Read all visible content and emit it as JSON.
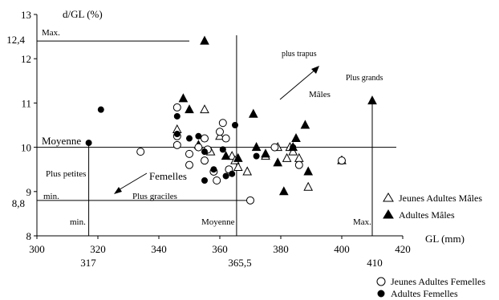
{
  "chart_data": {
    "type": "scatter",
    "title": "",
    "xlabel": "GL (mm)",
    "ylabel": "d/GL (%)",
    "xlim": [
      300,
      420
    ],
    "ylim": [
      8,
      13
    ],
    "x_ticks": [
      "300",
      "320",
      "340",
      "360",
      "380",
      "400",
      "420"
    ],
    "y_ticks": [
      "8",
      "9",
      "10",
      "11",
      "12",
      "13"
    ],
    "grid": false,
    "reference_lines": {
      "x_mean": 365.5,
      "y_mean": 10,
      "x_min": 317,
      "x_max": 410,
      "y_min": 8.8,
      "y_max": 12.4
    },
    "extra_labels": {
      "x_min_value": "317",
      "x_mean_value": "365,5",
      "x_max_value": "410",
      "y_min_value": "8,8",
      "y_max_value": "12,4"
    },
    "annotations": {
      "max_top": "Max.",
      "moyenne_left": "Moyenne",
      "min_left": "min.",
      "min_bottom": "min.",
      "moyenne_bottom": "Moyenne",
      "max_bottom": "Max.",
      "plus_trapus": "plus trapus",
      "males": "Mâles",
      "plus_grands": "Plus grands",
      "plus_petites": "Plus petites",
      "femelles": "Femelles",
      "plus_graciles": "Plus graciles"
    },
    "legend_placement": "bottom-right",
    "series": [
      {
        "name": "Jeunes Adultes Mâles",
        "marker": "triangle-open",
        "points": [
          [
            346,
            10.4
          ],
          [
            355,
            10.85
          ],
          [
            357,
            9.9
          ],
          [
            360,
            10.25
          ],
          [
            364,
            9.8
          ],
          [
            365,
            9.7
          ],
          [
            366,
            9.55
          ],
          [
            369,
            9.45
          ],
          [
            375,
            9.8
          ],
          [
            379,
            10.0
          ],
          [
            382,
            9.75
          ],
          [
            383,
            10.0
          ],
          [
            384,
            9.9
          ],
          [
            386,
            9.75
          ],
          [
            389,
            9.1
          ],
          [
            400,
            9.7
          ]
        ]
      },
      {
        "name": "Adultes Mâles",
        "marker": "triangle-filled",
        "points": [
          [
            355,
            12.4
          ],
          [
            348,
            11.1
          ],
          [
            350,
            10.85
          ],
          [
            353,
            10.05
          ],
          [
            362,
            9.8
          ],
          [
            366,
            9.75
          ],
          [
            371,
            10.75
          ],
          [
            372,
            10.0
          ],
          [
            375,
            9.85
          ],
          [
            379,
            9.65
          ],
          [
            381,
            9.0
          ],
          [
            384,
            10.0
          ],
          [
            385,
            10.2
          ],
          [
            388,
            10.5
          ],
          [
            389,
            9.45
          ],
          [
            410,
            11.05
          ]
        ]
      },
      {
        "name": "Jeunes Adultes Femelles",
        "marker": "circle-open",
        "points": [
          [
            334,
            9.9
          ],
          [
            346,
            10.9
          ],
          [
            346,
            10.05
          ],
          [
            346,
            10.25
          ],
          [
            350,
            9.6
          ],
          [
            350,
            9.85
          ],
          [
            353,
            10.0
          ],
          [
            355,
            9.7
          ],
          [
            355,
            10.2
          ],
          [
            356,
            9.95
          ],
          [
            358,
            9.45
          ],
          [
            359,
            9.25
          ],
          [
            360,
            10.35
          ],
          [
            361,
            10.55
          ],
          [
            362,
            10.2
          ],
          [
            363,
            9.5
          ],
          [
            370,
            8.8
          ],
          [
            378,
            10.0
          ],
          [
            386,
            9.6
          ],
          [
            400,
            9.7
          ]
        ]
      },
      {
        "name": "Adultes Femelles",
        "marker": "circle-filled",
        "points": [
          [
            321,
            10.85
          ],
          [
            317,
            10.1
          ],
          [
            346,
            10.3
          ],
          [
            346,
            10.7
          ],
          [
            350,
            10.2
          ],
          [
            353,
            10.25
          ],
          [
            355,
            9.9
          ],
          [
            355,
            9.25
          ],
          [
            358,
            9.5
          ],
          [
            361,
            9.95
          ],
          [
            362,
            9.35
          ],
          [
            364,
            9.4
          ],
          [
            365,
            10.5
          ],
          [
            372,
            9.8
          ],
          [
            384,
            10.0
          ]
        ]
      }
    ]
  }
}
